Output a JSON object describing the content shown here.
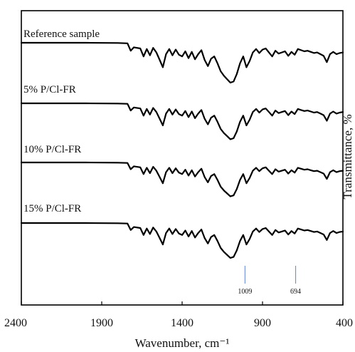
{
  "chart_data": {
    "type": "line",
    "xlabel": "Wavenumber, cm⁻¹",
    "ylabel": "Transmittance, %",
    "xlim": [
      2400,
      400
    ],
    "x_reversed": true,
    "xticks": [
      2400,
      1900,
      1400,
      900,
      400
    ],
    "grid": false,
    "y_axis_side": "right",
    "series": [
      {
        "name": "Reference sample"
      },
      {
        "name": "5% P/Cl-FR"
      },
      {
        "name": "10% P/Cl-FR"
      },
      {
        "name": "15% P/Cl-FR"
      }
    ],
    "spectrum": {
      "x": [
        2400,
        2000,
        1800,
        1740,
        1720,
        1700,
        1660,
        1640,
        1620,
        1600,
        1580,
        1560,
        1540,
        1520,
        1500,
        1480,
        1460,
        1440,
        1420,
        1400,
        1380,
        1360,
        1340,
        1320,
        1300,
        1280,
        1260,
        1240,
        1220,
        1200,
        1180,
        1160,
        1140,
        1120,
        1100,
        1080,
        1060,
        1040,
        1020,
        1000,
        980,
        960,
        940,
        920,
        900,
        880,
        860,
        840,
        820,
        800,
        780,
        760,
        740,
        720,
        700,
        680,
        660,
        640,
        620,
        600,
        580,
        560,
        540,
        520,
        500,
        480,
        460,
        440,
        420,
        400
      ],
      "y": [
        0,
        0,
        0.4,
        1,
        14,
        8,
        10,
        24,
        11,
        22,
        9,
        17,
        30,
        43,
        20,
        11,
        22,
        12,
        21,
        24,
        15,
        27,
        16,
        29,
        20,
        13,
        30,
        41,
        28,
        24,
        36,
        50,
        58,
        64,
        70,
        68,
        55,
        36,
        24,
        43,
        32,
        17,
        11,
        18,
        12,
        10,
        17,
        24,
        14,
        19,
        17,
        15,
        23,
        16,
        21,
        11,
        13,
        15,
        14,
        16,
        18,
        17,
        20,
        23,
        34,
        20,
        16,
        20,
        18,
        17
      ],
      "y_meaning": "relative absorption depth, 0 = baseline, 100 = deepest band (no y scale is printed)"
    },
    "annotations": [
      {
        "x": 1009,
        "label": "1009"
      },
      {
        "x": 694,
        "label": "694"
      }
    ]
  }
}
